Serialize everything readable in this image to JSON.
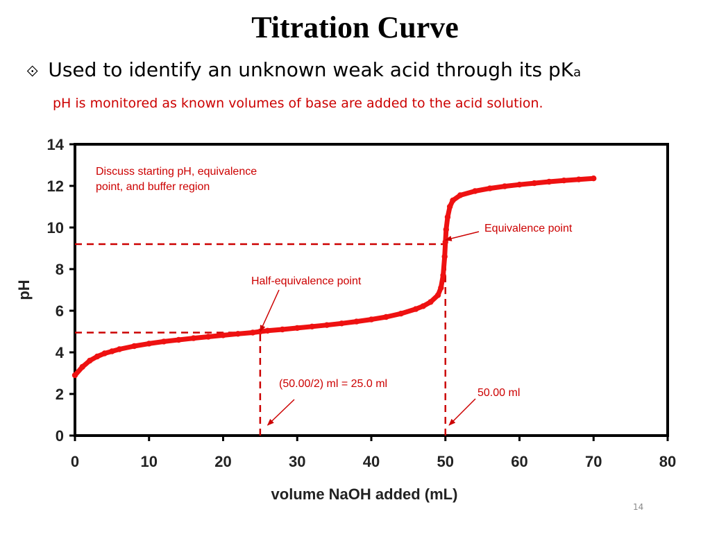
{
  "slide": {
    "title": "Titration Curve",
    "bullet_icon": "diamond-bullet-icon",
    "bullet_text": "Used to identify an unknown weak acid through its pK",
    "bullet_subscript": "a",
    "subtext": "pH is monitored as known volumes of base are added to the acid solution.",
    "page_number": "14"
  },
  "colors": {
    "curve": "#ee1111",
    "annotation": "#cc0000",
    "axis": "#000000"
  },
  "chart_data": {
    "type": "line",
    "title": "",
    "xlabel": "volume NaOH added (mL)",
    "ylabel": "pH",
    "xlim": [
      0,
      80
    ],
    "ylim": [
      0,
      14
    ],
    "xticks": [
      0,
      10,
      20,
      30,
      40,
      50,
      60,
      70,
      80
    ],
    "yticks": [
      0,
      2,
      4,
      6,
      8,
      10,
      12,
      14
    ],
    "grid": false,
    "legend": "none",
    "series": [
      {
        "x": [
          0,
          1,
          2,
          3,
          4,
          5,
          6,
          8,
          10,
          12,
          14,
          16,
          18,
          20,
          22,
          24,
          25,
          26,
          28,
          30,
          32,
          34,
          36,
          38,
          40,
          42,
          44,
          46,
          47,
          48,
          49,
          49.4,
          49.7,
          49.9,
          50,
          50.1,
          50.3,
          50.6,
          51,
          52,
          54,
          56,
          58,
          60,
          62,
          64,
          66,
          68,
          70
        ],
        "y": [
          2.9,
          3.3,
          3.6,
          3.8,
          3.95,
          4.05,
          4.15,
          4.3,
          4.42,
          4.52,
          4.6,
          4.68,
          4.75,
          4.82,
          4.89,
          4.95,
          5.0,
          5.04,
          5.1,
          5.17,
          5.24,
          5.31,
          5.39,
          5.48,
          5.58,
          5.7,
          5.86,
          6.08,
          6.22,
          6.42,
          6.75,
          7.1,
          7.7,
          8.6,
          9.3,
          9.9,
          10.5,
          11.0,
          11.3,
          11.55,
          11.75,
          11.88,
          11.98,
          12.06,
          12.13,
          12.2,
          12.26,
          12.31,
          12.36
        ]
      }
    ],
    "reference_lines": [
      {
        "orientation": "horizontal",
        "y": 9.2,
        "x_from": 0,
        "x_to": 50
      },
      {
        "orientation": "horizontal",
        "y": 4.95,
        "x_from": 0,
        "x_to": 25
      },
      {
        "orientation": "vertical",
        "x": 25,
        "y_from": 0,
        "y_to": 4.95
      },
      {
        "orientation": "vertical",
        "x": 50,
        "y_from": 0,
        "y_to": 9.2
      }
    ],
    "annotations": [
      {
        "text": [
          "Discuss starting pH, equivalence",
          "point, and buffer region"
        ]
      },
      {
        "text": [
          "Equivalence point"
        ],
        "points_to": [
          50,
          9.4
        ]
      },
      {
        "text": [
          "Half-equivalence point"
        ],
        "points_to": [
          25,
          5.0
        ]
      },
      {
        "text": [
          "(50.00/2) ml = 25.0 ml"
        ],
        "points_to": [
          26,
          0.5
        ]
      },
      {
        "text": [
          "50.00 ml"
        ],
        "points_to": [
          50.5,
          0.5
        ]
      }
    ]
  }
}
